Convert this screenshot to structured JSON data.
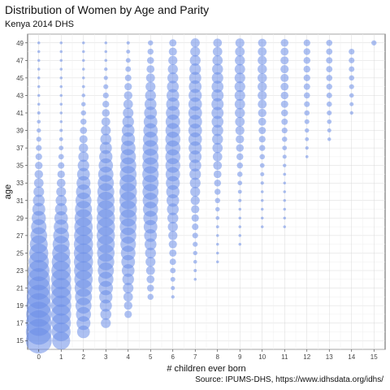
{
  "chart_data": {
    "type": "scatter",
    "title": "Distribution of Women by Age and Parity",
    "subtitle": "Kenya 2014 DHS",
    "caption": "Source: IPUMS-DHS, https://www.idhsdata.org/idhs/",
    "xlabel": "# children ever born",
    "ylabel": "age",
    "xlim": [
      -0.5,
      15.5
    ],
    "ylim": [
      14,
      50
    ],
    "x_ticks": [
      0,
      1,
      2,
      3,
      4,
      5,
      6,
      7,
      8,
      9,
      10,
      11,
      12,
      13,
      14,
      15
    ],
    "y_ticks": [
      15,
      17,
      19,
      21,
      23,
      25,
      27,
      29,
      31,
      33,
      35,
      37,
      39,
      41,
      43,
      45,
      47,
      49
    ],
    "grid": true,
    "point_color": "#6b8ee8",
    "size_note": "point radius encodes estimated share of women (relative, 0-1)",
    "size_by_parity": [
      {
        "parity": 0,
        "peak_age": 15,
        "spread": 9,
        "max": 1.0,
        "min_age": 15,
        "max_age": 49
      },
      {
        "parity": 1,
        "peak_age": 20,
        "spread": 7,
        "max": 0.62,
        "min_age": 15,
        "max_age": 49
      },
      {
        "parity": 2,
        "peak_age": 25,
        "spread": 7,
        "max": 0.55,
        "min_age": 16,
        "max_age": 49
      },
      {
        "parity": 3,
        "peak_age": 28,
        "spread": 7,
        "max": 0.5,
        "min_age": 17,
        "max_age": 49
      },
      {
        "parity": 4,
        "peak_age": 31,
        "spread": 7,
        "max": 0.46,
        "min_age": 18,
        "max_age": 49
      },
      {
        "parity": 5,
        "peak_age": 34,
        "spread": 7,
        "max": 0.4,
        "min_age": 20,
        "max_age": 49
      },
      {
        "parity": 6,
        "peak_age": 37,
        "spread": 7,
        "max": 0.34,
        "min_age": 20,
        "max_age": 49
      },
      {
        "parity": 7,
        "peak_age": 40,
        "spread": 7,
        "max": 0.28,
        "min_age": 22,
        "max_age": 49
      },
      {
        "parity": 8,
        "peak_age": 42,
        "spread": 6,
        "max": 0.22,
        "min_age": 24,
        "max_age": 49
      },
      {
        "parity": 9,
        "peak_age": 44,
        "spread": 6,
        "max": 0.17,
        "min_age": 26,
        "max_age": 49
      },
      {
        "parity": 10,
        "peak_age": 45,
        "spread": 6,
        "max": 0.13,
        "min_age": 28,
        "max_age": 49
      },
      {
        "parity": 11,
        "peak_age": 46,
        "spread": 6,
        "max": 0.1,
        "min_age": 28,
        "max_age": 49
      },
      {
        "parity": 12,
        "peak_age": 47,
        "spread": 6,
        "max": 0.07,
        "min_age": 36,
        "max_age": 49
      },
      {
        "parity": 13,
        "peak_age": 47,
        "spread": 6,
        "max": 0.06,
        "min_age": 38,
        "max_age": 49
      },
      {
        "parity": 14,
        "peak_age": 48,
        "spread": 5,
        "max": 0.05,
        "min_age": 41,
        "max_age": 48
      },
      {
        "parity": 15,
        "peak_age": 49,
        "spread": 3,
        "max": 0.04,
        "min_age": 49,
        "max_age": 49
      }
    ]
  }
}
